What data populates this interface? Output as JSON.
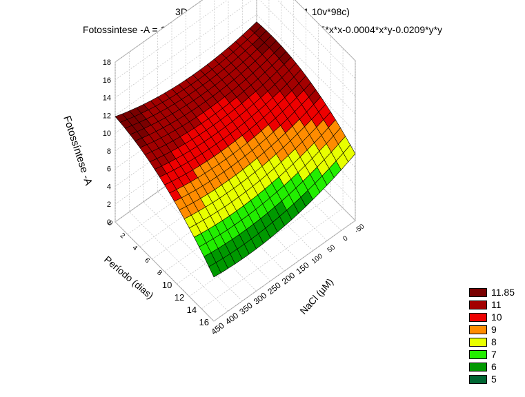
{
  "chart_data": {
    "type": "surface3d",
    "title": "3D Surface Plot (Spreadsheet1 10v*98c)",
    "subtitle": "Fotossintese -A = 10.838-0.0063*x+0.0841*y+1.9048E-5*x*x-0.0004*x*y-0.0209*y*y",
    "xlabel": "NaCl (µM)",
    "ylabel": "Período (dias)",
    "zlabel": "Fotossíntese -A",
    "equation": {
      "intercept": 10.838,
      "x": -0.0063,
      "y": 0.0841,
      "xx": 1.9048e-05,
      "xy": -0.0004,
      "yy": -0.0209
    },
    "xlim": [
      -50,
      450
    ],
    "ylim": [
      0,
      16
    ],
    "zlim": [
      0,
      18
    ],
    "x_ticks": [
      -50,
      0,
      50,
      100,
      150,
      200,
      250,
      300,
      350,
      400,
      450
    ],
    "y_ticks": [
      0,
      2,
      4,
      6,
      8,
      10,
      12,
      14,
      16
    ],
    "z_ticks": [
      0,
      2,
      4,
      6,
      8,
      10,
      12,
      14,
      16,
      18
    ],
    "legend": {
      "placement": "bottom-right",
      "levels": [
        {
          "label": "11.85",
          "color": "#7a0000"
        },
        {
          "label": "11",
          "color": "#a30000"
        },
        {
          "label": "10",
          "color": "#ee0000"
        },
        {
          "label": "9",
          "color": "#ff8c00"
        },
        {
          "label": "8",
          "color": "#e8ff00"
        },
        {
          "label": "7",
          "color": "#22ee00"
        },
        {
          "label": "6",
          "color": "#009900"
        },
        {
          "label": "5",
          "color": "#006633"
        }
      ]
    }
  }
}
